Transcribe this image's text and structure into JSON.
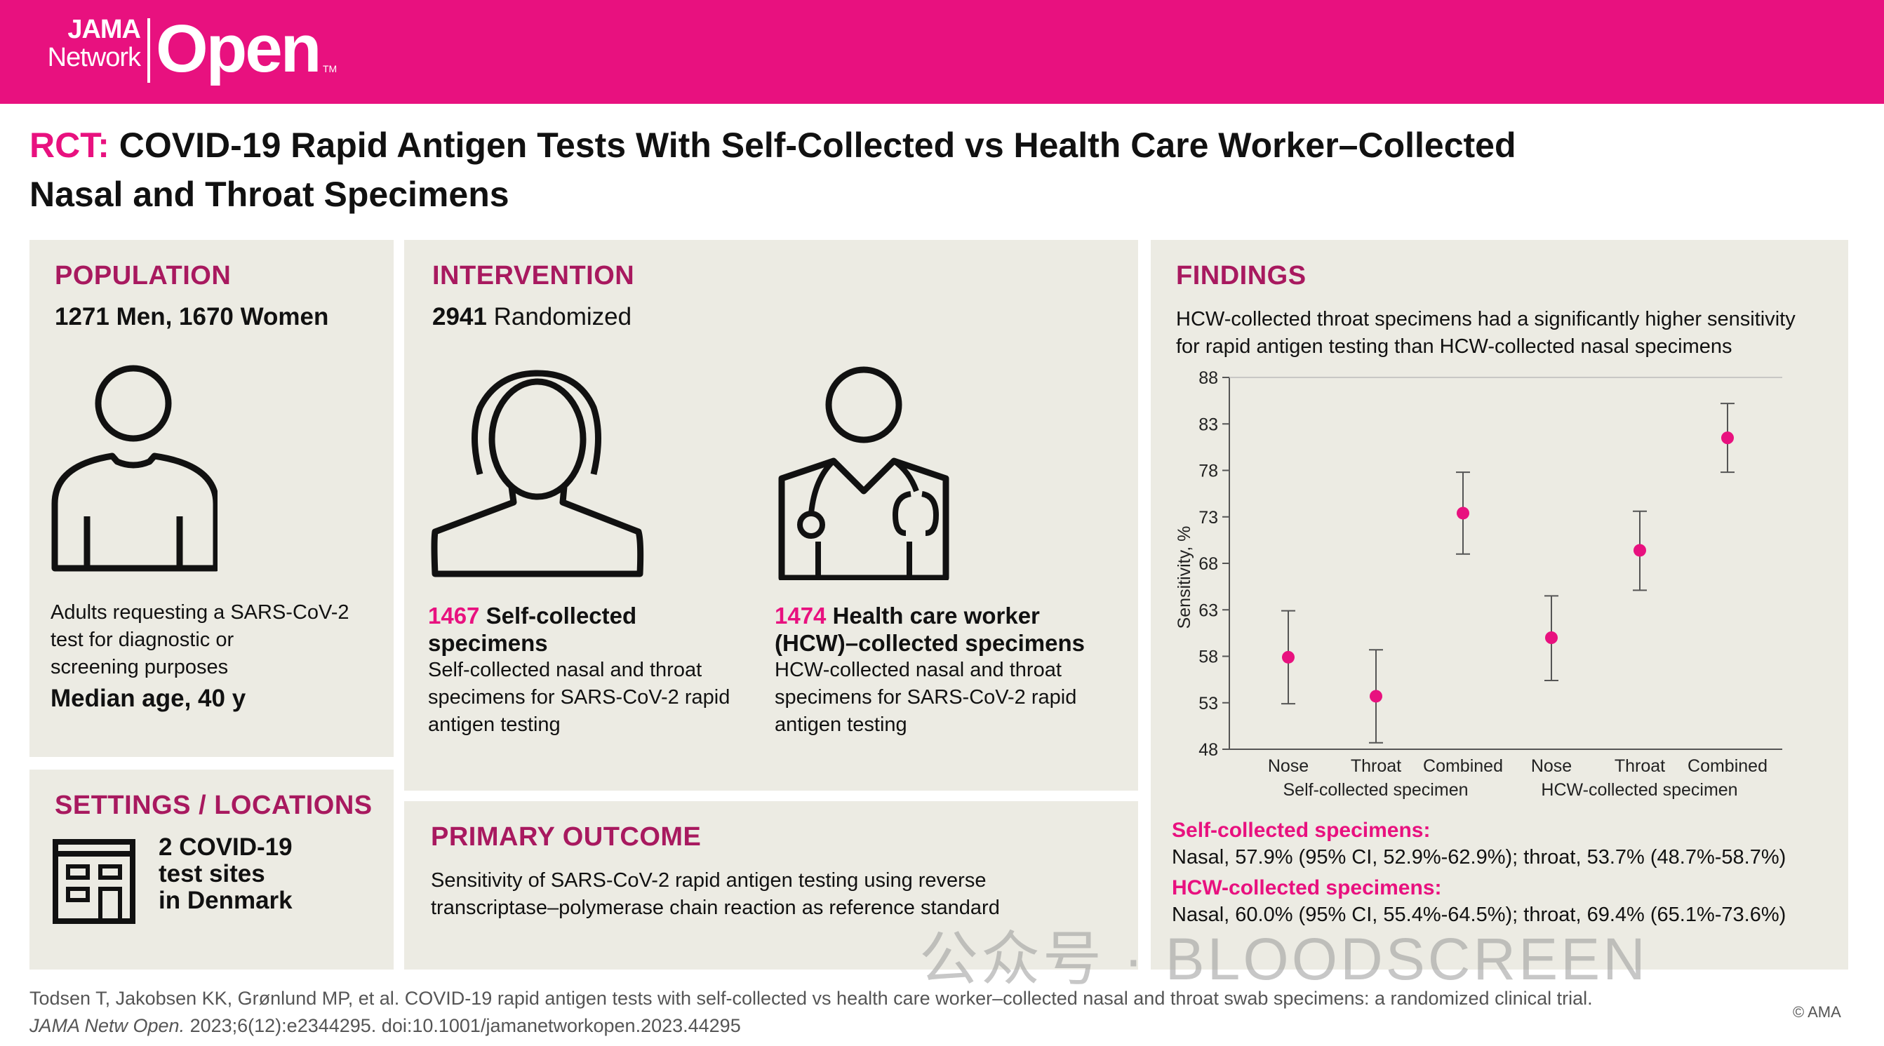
{
  "brand": {
    "line1": "JAMA",
    "line2": "Network",
    "big": "Open",
    "tm": "TM"
  },
  "title": {
    "prefix": "RCT:",
    "line1": "COVID-19 Rapid Antigen Tests With Self-Collected vs Health Care Worker–Collected",
    "line2": "Nasal and Throat Specimens"
  },
  "population": {
    "heading": "POPULATION",
    "counts": "1271 Men, 1670 Women",
    "desc": [
      "Adults requesting a SARS-CoV-2",
      "test for diagnostic or",
      "screening purposes"
    ],
    "median": "Median age, 40 y",
    "icon": "person-icon"
  },
  "settings": {
    "heading": "SETTINGS / LOCATIONS",
    "lines": [
      "2 COVID-19",
      "test sites",
      "in Denmark"
    ],
    "icon": "building-icon"
  },
  "intervention": {
    "heading": "INTERVENTION",
    "randomized_num": "2941",
    "randomized_label": " Randomized",
    "arm1": {
      "num": "1467",
      "title1": " Self-collected",
      "title2": "specimens",
      "desc": [
        "Self-collected nasal and throat",
        "specimens for SARS-CoV-2 rapid",
        "antigen testing"
      ],
      "icon": "person-icon"
    },
    "arm2": {
      "num": "1474",
      "title1": " Health care worker",
      "title2": "(HCW)–collected specimens",
      "desc": [
        "HCW-collected nasal and throat",
        "specimens for SARS-CoV-2 rapid",
        "antigen testing"
      ],
      "icon": "doctor-stethoscope-icon"
    }
  },
  "outcome": {
    "heading": "PRIMARY OUTCOME",
    "desc": [
      "Sensitivity of SARS-CoV-2 rapid antigen testing using reverse",
      "transcriptase–polymerase chain reaction as reference standard"
    ]
  },
  "findings": {
    "heading": "FINDINGS",
    "summary": [
      "HCW-collected throat specimens had a significantly higher sensitivity",
      "for rapid antigen testing than HCW-collected nasal specimens"
    ],
    "self_label": "Self-collected specimens:",
    "self_values": "Nasal, 57.9% (95% CI, 52.9%-62.9%); throat, 53.7% (48.7%-58.7%)",
    "hcw_label": "HCW-collected specimens:",
    "hcw_values": "Nasal, 60.0% (95% CI, 55.4%-64.5%); throat, 69.4% (65.1%-73.6%)"
  },
  "chart_data": {
    "type": "scatter",
    "ylabel": "Sensitivity, %",
    "ylim": [
      48,
      88
    ],
    "yticks": [
      48,
      53,
      58,
      63,
      68,
      73,
      78,
      83,
      88
    ],
    "categories": [
      "Nose",
      "Throat",
      "Combined",
      "Nose",
      "Throat",
      "Combined"
    ],
    "groups": [
      "Self-collected specimen",
      "HCW-collected specimen"
    ],
    "points": [
      {
        "group": "Self-collected specimen",
        "category": "Nose",
        "value": 57.9,
        "ci": [
          52.9,
          62.9
        ]
      },
      {
        "group": "Self-collected specimen",
        "category": "Throat",
        "value": 53.7,
        "ci": [
          48.7,
          58.7
        ]
      },
      {
        "group": "Self-collected specimen",
        "category": "Combined",
        "value": 73.4,
        "ci": [
          69.0,
          77.8
        ]
      },
      {
        "group": "HCW-collected specimen",
        "category": "Nose",
        "value": 60.0,
        "ci": [
          55.4,
          64.5
        ]
      },
      {
        "group": "HCW-collected specimen",
        "category": "Throat",
        "value": 69.4,
        "ci": [
          65.1,
          73.6
        ]
      },
      {
        "group": "HCW-collected specimen",
        "category": "Combined",
        "value": 81.5,
        "ci": [
          77.8,
          85.2
        ]
      }
    ],
    "grid": false,
    "point_color": "#e8117f"
  },
  "citation": {
    "line1": "Todsen T, Jakobsen KK, Grønlund MP, et al. COVID-19 rapid antigen tests with self-collected vs health care worker–collected nasal and throat swab specimens: a randomized clinical trial.",
    "journal": "JAMA Netw Open.",
    "line2": " 2023;6(12):e2344295. doi:10.1001/jamanetworkopen.2023.44295",
    "copyright": "© AMA"
  },
  "watermark": "公众号 · BLOODSCREEN",
  "colors": {
    "brand": "#e8117f",
    "heading": "#a8195f",
    "panel": "#ecebe3"
  }
}
